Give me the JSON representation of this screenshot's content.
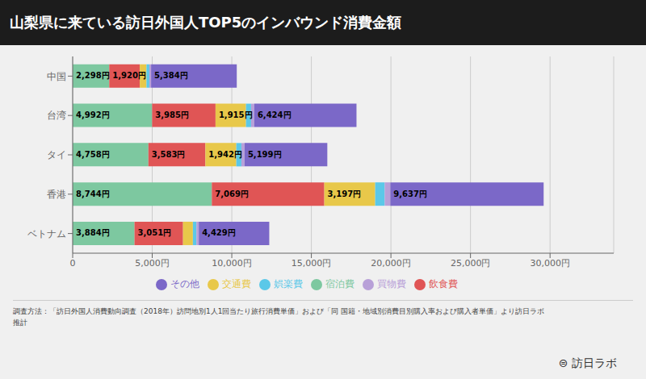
{
  "chart_data": {
    "type": "bar",
    "title": "山梨県に来ている訪日外国人TOP5のインバウンド消費金額",
    "orientation": "horizontal",
    "stacked": true,
    "grid": true,
    "legend": "bottom",
    "categories": [
      "中国",
      "台湾",
      "タイ",
      "香港",
      "ベトナム"
    ],
    "xlim": [
      0,
      34000
    ],
    "xticks": [
      0,
      {
        "value": 5000,
        "label": "5,000円"
      },
      {
        "value": 10000,
        "label": "10,000円"
      },
      {
        "value": 15000,
        "label": "15,000円"
      },
      {
        "value": 20000,
        "label": "20,000円"
      },
      {
        "value": 25000,
        "label": "25,000円"
      },
      {
        "value": 30000,
        "label": "30,000円"
      }
    ],
    "series": [
      {
        "name": "宿泊費",
        "color": "#7dc8a0",
        "values": [
          2298,
          4992,
          4758,
          8744,
          3884
        ],
        "value_labels": [
          "2,298円",
          "4,992円",
          "4,758円",
          "8,744円",
          "3,884円"
        ]
      },
      {
        "name": "飲食費",
        "color": "#e05555",
        "values": [
          1920,
          3985,
          3583,
          7069,
          3051
        ],
        "value_labels": [
          "1,920円",
          "3,985円",
          "3,583円",
          "7,069円",
          "3,051円"
        ]
      },
      {
        "name": "交通費",
        "color": "#e8c84a",
        "values": [
          420,
          1915,
          1942,
          3197,
          620
        ],
        "value_labels": [
          null,
          "1,915円",
          "1,942円",
          "3,197円",
          null
        ]
      },
      {
        "name": "娯楽費",
        "color": "#5bc8e8",
        "values": [
          180,
          320,
          320,
          600,
          220
        ]
      },
      {
        "name": "買物費",
        "color": "#b8a0d8",
        "values": [
          110,
          200,
          200,
          350,
          150
        ]
      },
      {
        "name": "その他",
        "color": "#7b68c8",
        "values": [
          5384,
          6424,
          5199,
          9637,
          4429
        ],
        "value_labels": [
          "5,384円",
          "6,424円",
          "5,199円",
          "9,637円",
          "4,429円"
        ]
      }
    ],
    "annotations": [
      "調査方法：「訪日外国人消費動向調査（2018年）訪問地別1人1回当たり旅行消費単価」および「同 国籍・地域別消費目別購入率および購入者単価」より訪日ラボ",
      "推計",
      "⊜ 訪日ラボ"
    ]
  }
}
